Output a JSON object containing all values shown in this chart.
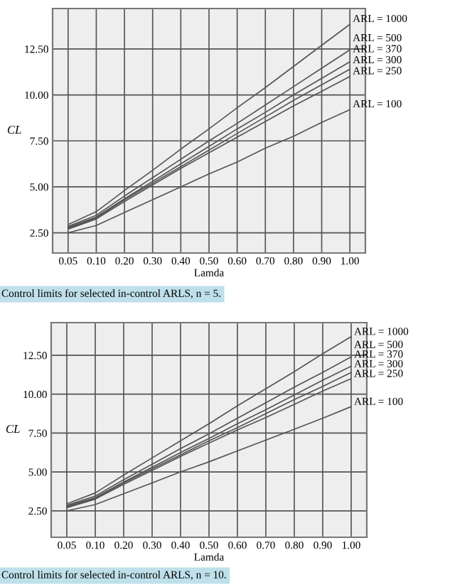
{
  "chart_data": [
    {
      "type": "line",
      "categories": [
        "0.05",
        "0.10",
        "0.20",
        "0.30",
        "0.40",
        "0.50",
        "0.60",
        "0.70",
        "0.80",
        "0.90",
        "1.00"
      ],
      "xlabel": "Lamda",
      "ylabel": "CL",
      "ylim": [
        1.4,
        14.7
      ],
      "yticks": [
        {
          "value": 2.5,
          "label": "2.50"
        },
        {
          "value": 5,
          "label": "5.00"
        },
        {
          "value": 7.5,
          "label": "7.50"
        },
        {
          "value": 10,
          "label": "10.00"
        },
        {
          "value": 12.5,
          "label": "12.50"
        }
      ],
      "grid": true,
      "marker": "none",
      "line_style": "solid",
      "series": [
        {
          "name": "ARL = 1000",
          "color": "#555555",
          "values": [
            2.95,
            3.65,
            4.8,
            5.9,
            7.05,
            8.15,
            9.3,
            10.4,
            11.55,
            12.7,
            13.84
          ]
        },
        {
          "name": "ARL = 500",
          "color": "#555555",
          "values": [
            2.85,
            3.45,
            4.5,
            5.5,
            6.5,
            7.5,
            8.45,
            9.45,
            10.45,
            11.45,
            12.45
          ]
        },
        {
          "name": "ARL = 370",
          "color": "#555555",
          "values": [
            2.8,
            3.35,
            4.35,
            5.3,
            6.25,
            7.2,
            8.15,
            9.05,
            10.0,
            10.9,
            11.8
          ]
        },
        {
          "name": "ARL = 300",
          "color": "#555555",
          "values": [
            2.75,
            3.3,
            4.3,
            5.2,
            6.1,
            7.0,
            7.9,
            8.8,
            9.7,
            10.55,
            11.4
          ]
        },
        {
          "name": "ARL = 250",
          "color": "#555555",
          "values": [
            2.7,
            3.25,
            4.2,
            5.1,
            6.0,
            6.85,
            7.7,
            8.55,
            9.4,
            10.2,
            11.0
          ]
        },
        {
          "name": "ARL = 100",
          "color": "#555555",
          "values": [
            2.5,
            2.9,
            3.6,
            4.3,
            5.0,
            5.7,
            6.35,
            7.1,
            7.75,
            8.5,
            9.2
          ]
        }
      ],
      "annotations": [
        "Control limits for selected in-control ARLS, n = 5."
      ]
    },
    {
      "type": "line",
      "categories": [
        "0.05",
        "0.10",
        "0.20",
        "0.30",
        "0.40",
        "0.50",
        "0.60",
        "0.70",
        "0.80",
        "0.90",
        "1.00"
      ],
      "xlabel": "Lamda",
      "ylabel": "CL",
      "ylim": [
        0.8,
        14.6
      ],
      "yticks": [
        {
          "value": 2.5,
          "label": "2.50"
        },
        {
          "value": 5,
          "label": "5.00"
        },
        {
          "value": 7.5,
          "label": "7.50"
        },
        {
          "value": 10,
          "label": "10.00"
        },
        {
          "value": 12.5,
          "label": "12.50"
        }
      ],
      "grid": true,
      "marker": "none",
      "line_style": "solid",
      "series": [
        {
          "name": "ARL = 1000",
          "color": "#555555",
          "values": [
            2.95,
            3.65,
            4.8,
            5.9,
            7.0,
            8.1,
            9.25,
            10.35,
            11.45,
            12.6,
            13.7
          ]
        },
        {
          "name": "ARL = 500",
          "color": "#555555",
          "values": [
            2.85,
            3.45,
            4.5,
            5.5,
            6.5,
            7.45,
            8.45,
            9.45,
            10.45,
            11.4,
            12.4
          ]
        },
        {
          "name": "ARL = 370",
          "color": "#555555",
          "values": [
            2.8,
            3.35,
            4.35,
            5.3,
            6.25,
            7.15,
            8.1,
            9.0,
            9.95,
            10.9,
            11.8
          ]
        },
        {
          "name": "ARL = 300",
          "color": "#555555",
          "values": [
            2.75,
            3.3,
            4.3,
            5.2,
            6.1,
            7.0,
            7.85,
            8.75,
            9.65,
            10.5,
            11.4
          ]
        },
        {
          "name": "ARL = 250",
          "color": "#555555",
          "values": [
            2.7,
            3.25,
            4.2,
            5.1,
            6.0,
            6.85,
            7.7,
            8.5,
            9.35,
            10.2,
            11.0
          ]
        },
        {
          "name": "ARL = 100",
          "color": "#555555",
          "values": [
            2.5,
            2.9,
            3.6,
            4.3,
            5.0,
            5.65,
            6.35,
            7.05,
            7.75,
            8.45,
            9.2
          ]
        }
      ],
      "annotations": [
        "Control limits for selected in-control ARLS, n = 10."
      ]
    }
  ]
}
